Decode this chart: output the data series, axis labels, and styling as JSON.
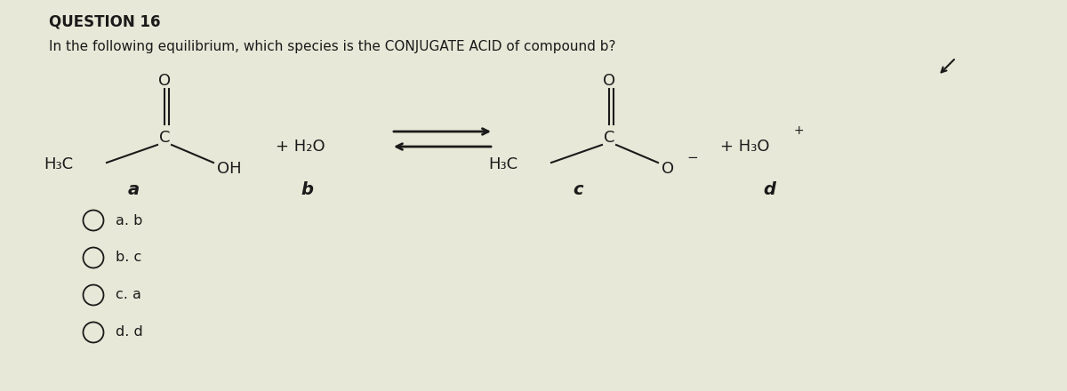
{
  "title": "QUESTION 16",
  "question": "In the following equilibrium, which species is the CONJUGATE ACID of compound b?",
  "bg_color": "#e8e8d8",
  "text_color": "#1a1a1a",
  "options": [
    "a. b",
    "b. c",
    "c. a",
    "d. d"
  ],
  "label_a": "a",
  "label_b": "b",
  "label_c": "c",
  "label_d": "d",
  "struct_fontsize": 13,
  "label_fontsize": 14
}
